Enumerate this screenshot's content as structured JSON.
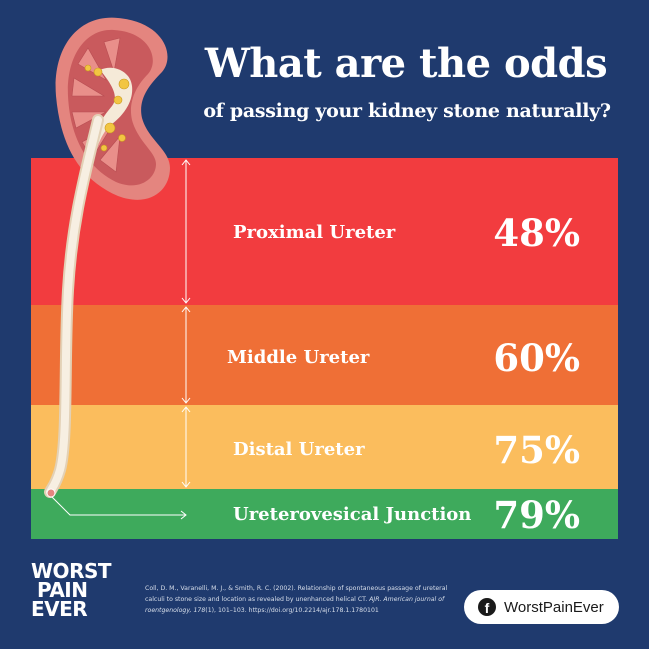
{
  "header": {
    "title": "What are the odds",
    "subtitle": "of passing your kidney stone naturally?"
  },
  "bands": [
    {
      "label": "Proximal Ureter",
      "percent": "48%",
      "color": "#f23c3f"
    },
    {
      "label": "Middle Ureter",
      "percent": "60%",
      "color": "#ef6f36"
    },
    {
      "label": "Distal Ureter",
      "percent": "75%",
      "color": "#fbbd5d"
    },
    {
      "label": "Ureterovesical Junction",
      "percent": "79%",
      "color": "#3eaa5c"
    }
  ],
  "brand": {
    "logo_line1": "WORST",
    "logo_line2": "PAIN",
    "logo_line3": "EVER"
  },
  "citation": {
    "text_1": "Coll, D. M., Varanelli, M. J., & Smith, R. C. (2002). Relationship of spontaneous passage of ureteral calculi to stone size and location as revealed by unenhanced helical CT. ",
    "journal_1": "AJR. American journal of roentgenology, 178",
    "text_2": "(1), 101–103. https://doi.org/10.2214/ajr.178.1.1780101"
  },
  "social": {
    "icon": "facebook-icon",
    "handle": "WorstPainEver"
  },
  "colors": {
    "background": "#1f3a6e",
    "kidney": "#e4857f",
    "ureter": "#f5ead8",
    "stone": "#f2c542"
  }
}
